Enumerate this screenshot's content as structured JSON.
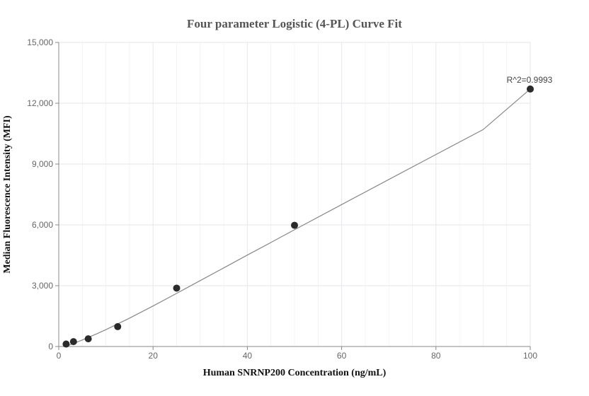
{
  "chart_data": {
    "type": "scatter",
    "title": "Four parameter Logistic (4-PL) Curve Fit",
    "xlabel": "Human SNRNP200 Concentration (ng/mL)",
    "ylabel": "Median Fluorescence Intensity (MFI)",
    "xlim": [
      0,
      100
    ],
    "ylim": [
      0,
      15000
    ],
    "x_ticks": [
      0,
      20,
      40,
      60,
      80,
      100
    ],
    "y_ticks": [
      0,
      3000,
      6000,
      9000,
      12000,
      15000
    ],
    "x_tick_labels": [
      "0",
      "20",
      "40",
      "60",
      "80",
      "100"
    ],
    "y_tick_labels": [
      "0",
      "3,000",
      "6,000",
      "9,000",
      "12,000",
      "15,000"
    ],
    "grid": true,
    "point_color": "#2b2b2b",
    "curve_color": "#888888",
    "grid_color": "#e6e6ee",
    "series": [
      {
        "x": [
          1.5625,
          3.125,
          6.25,
          12.5,
          25,
          50,
          100
        ],
        "y": [
          120,
          240,
          380,
          980,
          2880,
          5980,
          12700
        ]
      }
    ],
    "fit_curve": {
      "x": [
        1.5,
        3,
        5,
        8,
        10,
        15,
        20,
        25,
        30,
        35,
        40,
        45,
        50,
        60,
        70,
        80,
        90,
        100
      ],
      "y": [
        0,
        140,
        320,
        620,
        830,
        1400,
        2000,
        2620,
        3250,
        3880,
        4510,
        5130,
        5760,
        7000,
        8240,
        9470,
        10700,
        12700
      ]
    },
    "annotation": {
      "text": "R^2=0.9993",
      "x": 100,
      "y": 12700
    }
  }
}
